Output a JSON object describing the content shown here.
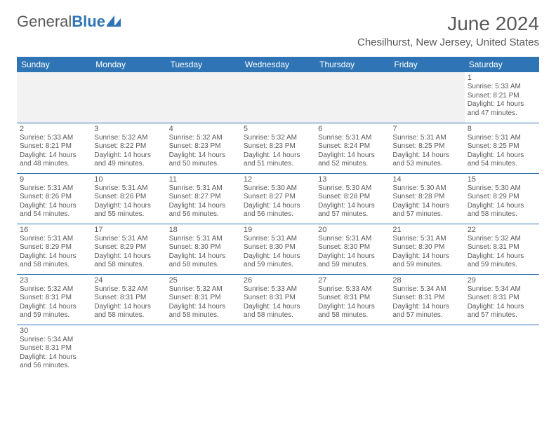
{
  "logo": {
    "general": "General",
    "blue": "Blue"
  },
  "title": {
    "month_year": "June 2024",
    "location": "Chesilhurst, New Jersey, United States"
  },
  "colors": {
    "accent": "#2f75b5",
    "text": "#595959",
    "alt_row": "#f2f2f2",
    "bg": "#ffffff"
  },
  "day_names": [
    "Sunday",
    "Monday",
    "Tuesday",
    "Wednesday",
    "Thursday",
    "Friday",
    "Saturday"
  ],
  "labels": {
    "sunrise": "Sunrise:",
    "sunset": "Sunset:",
    "daylight": "Daylight:"
  },
  "weeks": [
    [
      null,
      null,
      null,
      null,
      null,
      null,
      {
        "n": "1",
        "sr": "5:33 AM",
        "ss": "8:21 PM",
        "dl": "14 hours and 47 minutes."
      }
    ],
    [
      {
        "n": "2",
        "sr": "5:33 AM",
        "ss": "8:21 PM",
        "dl": "14 hours and 48 minutes."
      },
      {
        "n": "3",
        "sr": "5:32 AM",
        "ss": "8:22 PM",
        "dl": "14 hours and 49 minutes."
      },
      {
        "n": "4",
        "sr": "5:32 AM",
        "ss": "8:23 PM",
        "dl": "14 hours and 50 minutes."
      },
      {
        "n": "5",
        "sr": "5:32 AM",
        "ss": "8:23 PM",
        "dl": "14 hours and 51 minutes."
      },
      {
        "n": "6",
        "sr": "5:31 AM",
        "ss": "8:24 PM",
        "dl": "14 hours and 52 minutes."
      },
      {
        "n": "7",
        "sr": "5:31 AM",
        "ss": "8:25 PM",
        "dl": "14 hours and 53 minutes."
      },
      {
        "n": "8",
        "sr": "5:31 AM",
        "ss": "8:25 PM",
        "dl": "14 hours and 54 minutes."
      }
    ],
    [
      {
        "n": "9",
        "sr": "5:31 AM",
        "ss": "8:26 PM",
        "dl": "14 hours and 54 minutes."
      },
      {
        "n": "10",
        "sr": "5:31 AM",
        "ss": "8:26 PM",
        "dl": "14 hours and 55 minutes."
      },
      {
        "n": "11",
        "sr": "5:31 AM",
        "ss": "8:27 PM",
        "dl": "14 hours and 56 minutes."
      },
      {
        "n": "12",
        "sr": "5:30 AM",
        "ss": "8:27 PM",
        "dl": "14 hours and 56 minutes."
      },
      {
        "n": "13",
        "sr": "5:30 AM",
        "ss": "8:28 PM",
        "dl": "14 hours and 57 minutes."
      },
      {
        "n": "14",
        "sr": "5:30 AM",
        "ss": "8:28 PM",
        "dl": "14 hours and 57 minutes."
      },
      {
        "n": "15",
        "sr": "5:30 AM",
        "ss": "8:29 PM",
        "dl": "14 hours and 58 minutes."
      }
    ],
    [
      {
        "n": "16",
        "sr": "5:31 AM",
        "ss": "8:29 PM",
        "dl": "14 hours and 58 minutes."
      },
      {
        "n": "17",
        "sr": "5:31 AM",
        "ss": "8:29 PM",
        "dl": "14 hours and 58 minutes."
      },
      {
        "n": "18",
        "sr": "5:31 AM",
        "ss": "8:30 PM",
        "dl": "14 hours and 58 minutes."
      },
      {
        "n": "19",
        "sr": "5:31 AM",
        "ss": "8:30 PM",
        "dl": "14 hours and 59 minutes."
      },
      {
        "n": "20",
        "sr": "5:31 AM",
        "ss": "8:30 PM",
        "dl": "14 hours and 59 minutes."
      },
      {
        "n": "21",
        "sr": "5:31 AM",
        "ss": "8:30 PM",
        "dl": "14 hours and 59 minutes."
      },
      {
        "n": "22",
        "sr": "5:32 AM",
        "ss": "8:31 PM",
        "dl": "14 hours and 59 minutes."
      }
    ],
    [
      {
        "n": "23",
        "sr": "5:32 AM",
        "ss": "8:31 PM",
        "dl": "14 hours and 59 minutes."
      },
      {
        "n": "24",
        "sr": "5:32 AM",
        "ss": "8:31 PM",
        "dl": "14 hours and 58 minutes."
      },
      {
        "n": "25",
        "sr": "5:32 AM",
        "ss": "8:31 PM",
        "dl": "14 hours and 58 minutes."
      },
      {
        "n": "26",
        "sr": "5:33 AM",
        "ss": "8:31 PM",
        "dl": "14 hours and 58 minutes."
      },
      {
        "n": "27",
        "sr": "5:33 AM",
        "ss": "8:31 PM",
        "dl": "14 hours and 58 minutes."
      },
      {
        "n": "28",
        "sr": "5:34 AM",
        "ss": "8:31 PM",
        "dl": "14 hours and 57 minutes."
      },
      {
        "n": "29",
        "sr": "5:34 AM",
        "ss": "8:31 PM",
        "dl": "14 hours and 57 minutes."
      }
    ],
    [
      {
        "n": "30",
        "sr": "5:34 AM",
        "ss": "8:31 PM",
        "dl": "14 hours and 56 minutes."
      },
      null,
      null,
      null,
      null,
      null,
      null
    ]
  ]
}
